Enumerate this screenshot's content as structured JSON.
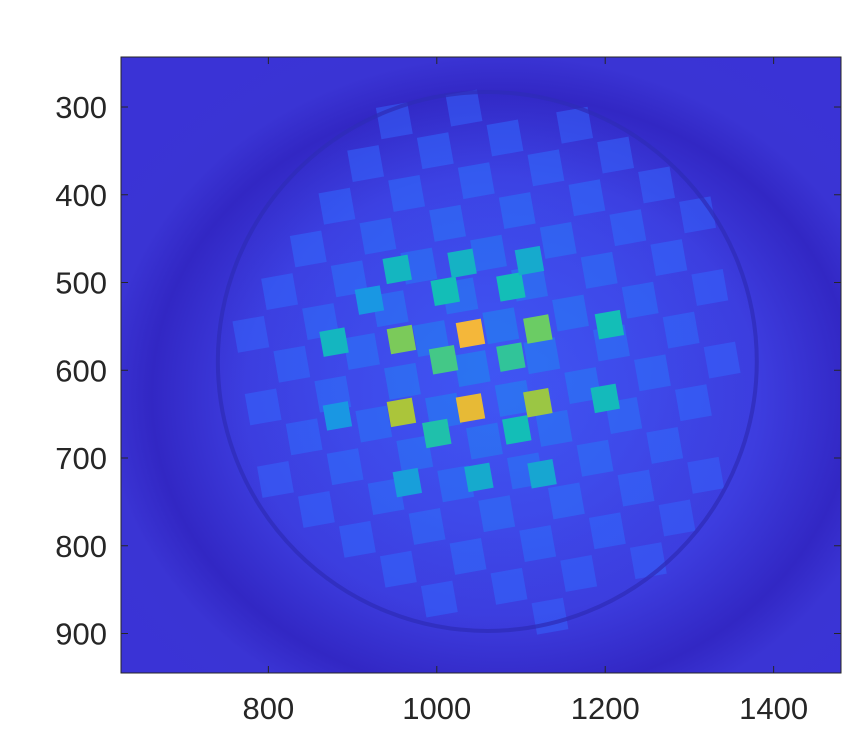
{
  "chart_data": {
    "type": "heatmap",
    "title": "",
    "xlabel": "",
    "ylabel": "",
    "colormap": "parula",
    "colormap_stops": [
      "#3e26a8",
      "#4746eb",
      "#3267fe",
      "#1b8dee",
      "#13beb7",
      "#5fcd6c",
      "#c3c22a",
      "#fbb53c",
      "#f9fb0e"
    ],
    "background_color": "#3a33d8",
    "xlim": [
      625,
      1480
    ],
    "ylim": [
      945,
      243
    ],
    "x_ticks": [
      800,
      1000,
      1200,
      1400
    ],
    "x_tick_labels": [
      "800",
      "1000",
      "1200",
      "1400"
    ],
    "y_ticks": [
      300,
      400,
      500,
      600,
      700,
      800,
      900
    ],
    "y_tick_labels": [
      "300",
      "400",
      "500",
      "600",
      "700",
      "800",
      "900"
    ],
    "grid": false,
    "circular_aperture": {
      "center": [
        1060,
        590
      ],
      "radius": 320
    },
    "checkerboard": {
      "cell_size": 42,
      "origin": [
        1042,
        598
      ],
      "rotation_deg": -10,
      "hot_cells": [
        {
          "x": 1040,
          "y": 558,
          "level": 0.86
        },
        {
          "x": 1040,
          "y": 643,
          "level": 0.83
        },
        {
          "x": 958,
          "y": 648,
          "level": 0.72
        },
        {
          "x": 1120,
          "y": 637,
          "level": 0.7
        },
        {
          "x": 958,
          "y": 565,
          "level": 0.66
        },
        {
          "x": 1120,
          "y": 553,
          "level": 0.64
        },
        {
          "x": 1008,
          "y": 588,
          "level": 0.58
        },
        {
          "x": 1088,
          "y": 585,
          "level": 0.55
        },
        {
          "x": 1000,
          "y": 672,
          "level": 0.52
        },
        {
          "x": 1095,
          "y": 668,
          "level": 0.5
        },
        {
          "x": 1010,
          "y": 510,
          "level": 0.5
        },
        {
          "x": 1088,
          "y": 505,
          "level": 0.5
        },
        {
          "x": 1205,
          "y": 548,
          "level": 0.5
        },
        {
          "x": 1200,
          "y": 632,
          "level": 0.49
        },
        {
          "x": 878,
          "y": 568,
          "level": 0.48
        },
        {
          "x": 953,
          "y": 485,
          "level": 0.48
        },
        {
          "x": 1030,
          "y": 478,
          "level": 0.47
        },
        {
          "x": 1110,
          "y": 475,
          "level": 0.45
        },
        {
          "x": 1050,
          "y": 722,
          "level": 0.45
        },
        {
          "x": 1125,
          "y": 718,
          "level": 0.44
        },
        {
          "x": 965,
          "y": 728,
          "level": 0.42
        },
        {
          "x": 882,
          "y": 652,
          "level": 0.4
        },
        {
          "x": 920,
          "y": 520,
          "level": 0.4
        }
      ]
    }
  }
}
